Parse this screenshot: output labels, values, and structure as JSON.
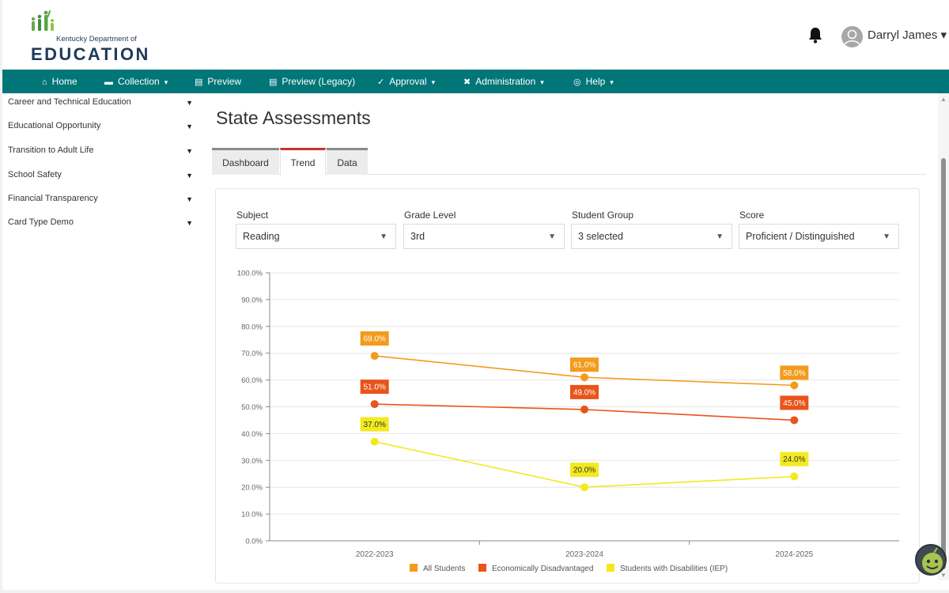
{
  "header": {
    "logo_line1": "Kentucky Department of",
    "logo_line2": "EDUCATION",
    "user_name": "Darryl James ▾"
  },
  "nav": {
    "items": [
      {
        "label": "Home",
        "icon": "home-icon"
      },
      {
        "label": "Collection",
        "icon": "folder-icon",
        "caret": "▾"
      },
      {
        "label": "Preview",
        "icon": "chart-icon"
      },
      {
        "label": "Preview (Legacy)",
        "icon": "chart-icon"
      },
      {
        "label": "Approval",
        "icon": "check-icon",
        "caret": "▾"
      },
      {
        "label": "Administration",
        "icon": "tools-icon",
        "caret": "▾"
      },
      {
        "label": "Help",
        "icon": "lifebuoy-icon",
        "caret": "▾"
      }
    ]
  },
  "sidebar": {
    "items": [
      {
        "label": "Career and Technical Education"
      },
      {
        "label": "Educational Opportunity"
      },
      {
        "label": "Transition to Adult Life"
      },
      {
        "label": "School Safety"
      },
      {
        "label": "Financial Transparency"
      },
      {
        "label": "Card Type Demo"
      }
    ]
  },
  "main": {
    "title": "State Assessments",
    "tabs": [
      {
        "label": "Dashboard",
        "active": false
      },
      {
        "label": "Trend",
        "active": true
      },
      {
        "label": "Data",
        "active": false
      }
    ],
    "filters": [
      {
        "label": "Subject",
        "value": "Reading"
      },
      {
        "label": "Grade Level",
        "value": "3rd"
      },
      {
        "label": "Student Group",
        "value": "3 selected"
      },
      {
        "label": "Score",
        "value": "Proficient / Distinguished"
      }
    ]
  },
  "colors": {
    "nav_bg": "#007679",
    "active_tab": "#c9332c",
    "all_students": "#f29b1d",
    "econ_disadv": "#e8541b",
    "disabilities": "#f2ea1f"
  },
  "chart_data": {
    "type": "line",
    "categories": [
      "2022-2023",
      "2023-2024",
      "2024-2025"
    ],
    "yticks": [
      "100.0%",
      "90.0%",
      "80.0%",
      "70.0%",
      "60.0%",
      "50.0%",
      "40.0%",
      "30.0%",
      "20.0%",
      "10.0%",
      "0.0%"
    ],
    "ylim": [
      0,
      100
    ],
    "grid": true,
    "legend_position": "bottom",
    "series": [
      {
        "name": "All Students",
        "values": [
          69.0,
          61.0,
          58.0
        ],
        "labels": [
          "69.0%",
          "61.0%",
          "58.0%"
        ]
      },
      {
        "name": "Economically Disadvantaged",
        "values": [
          51.0,
          49.0,
          45.0
        ],
        "labels": [
          "51.0%",
          "49.0%",
          "45.0%"
        ]
      },
      {
        "name": "Students with Disabilities (IEP)",
        "values": [
          37.0,
          20.0,
          24.0
        ],
        "labels": [
          "37.0%",
          "20.0%",
          "24.0%"
        ]
      }
    ]
  }
}
